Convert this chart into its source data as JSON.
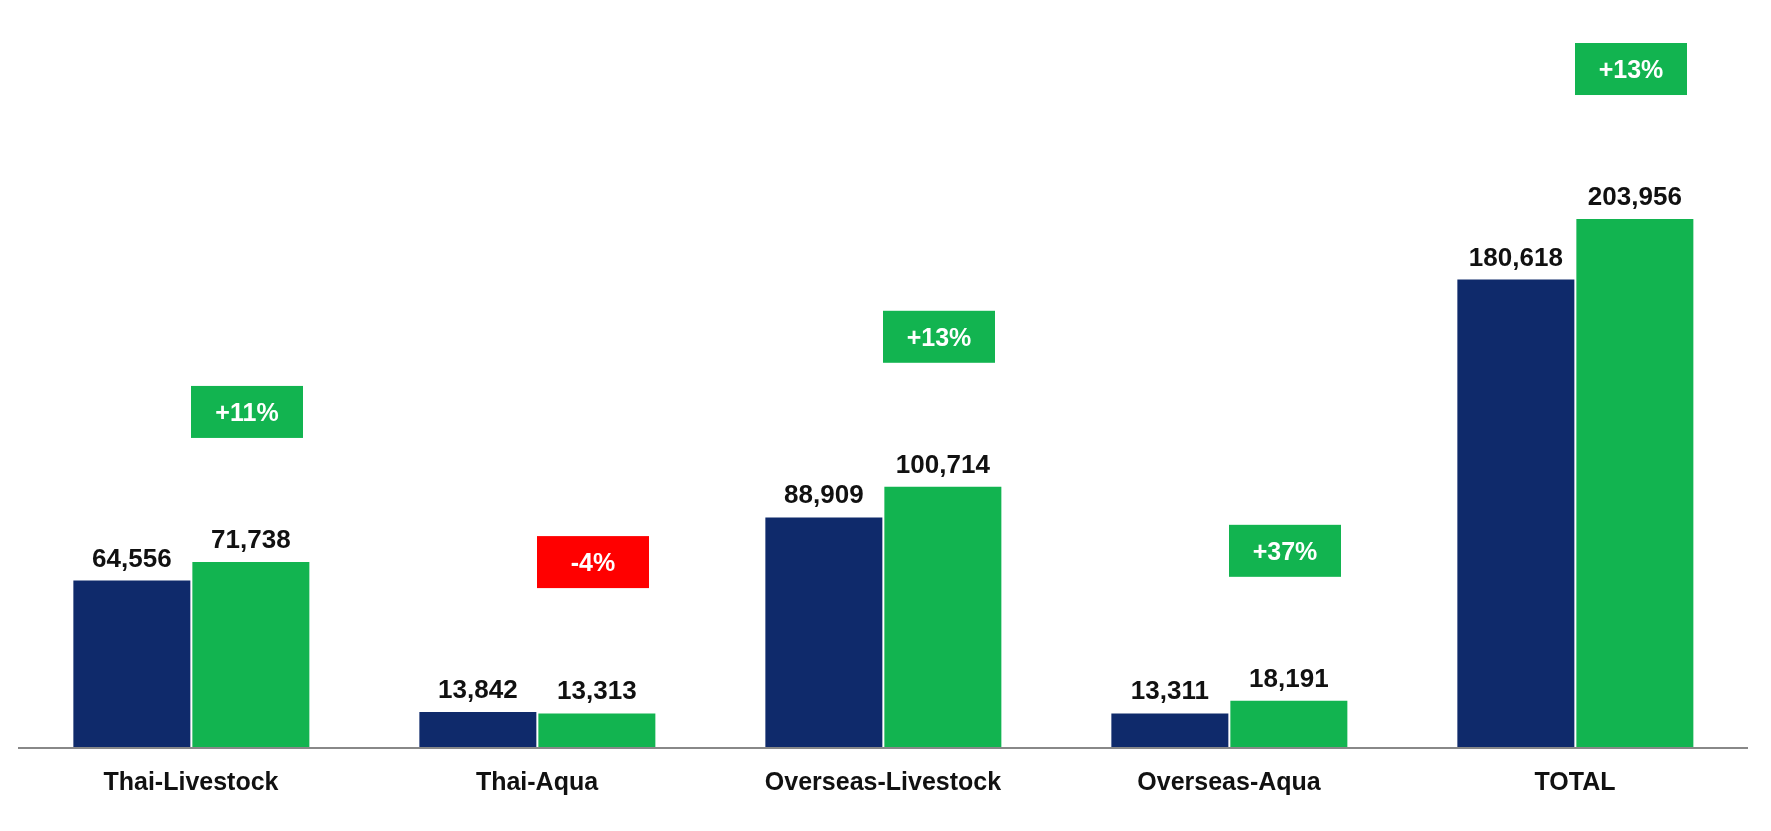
{
  "chart_data": {
    "type": "bar",
    "categories": [
      "Thai-Livestock",
      "Thai-Aqua",
      "Overseas-Livestock",
      "Overseas-Aqua",
      "TOTAL"
    ],
    "series": [
      {
        "color": "#0f2a6b",
        "values": [
          64556,
          13842,
          88909,
          13311,
          180618
        ],
        "value_labels": [
          "64,556",
          "13,842",
          "88,909",
          "13,311",
          "180,618"
        ]
      },
      {
        "color": "#12b450",
        "values": [
          71738,
          13313,
          100714,
          18191,
          203956
        ],
        "value_labels": [
          "71,738",
          "13,313",
          "100,714",
          "18,191",
          "203,956"
        ]
      }
    ],
    "grid": false,
    "legend": false,
    "annotations": [
      "+11%",
      "-4%",
      "+13%",
      "+37%",
      "+13%"
    ]
  }
}
